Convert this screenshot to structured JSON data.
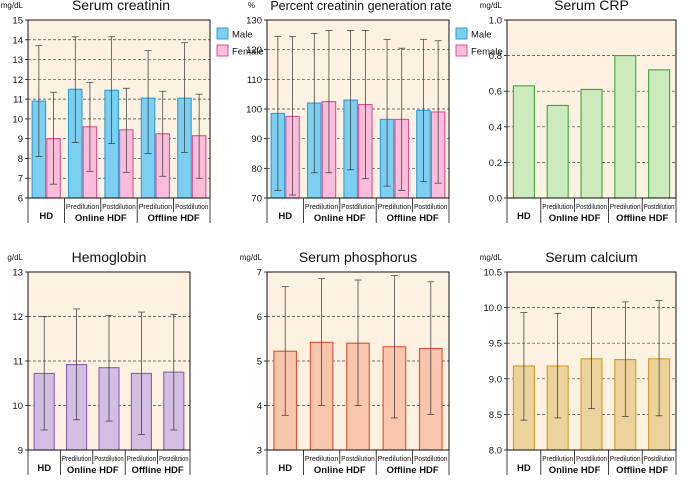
{
  "figure": {
    "group_labels": {
      "hd": "HD",
      "online": "Online HDF",
      "offline": "Offline HDF"
    },
    "sub_labels": {
      "pre": "Predilution",
      "post": "Postdilution"
    }
  },
  "chart_data": [
    {
      "id": "creatinin",
      "type": "bar",
      "title": "Serum creatinin",
      "ylabel": "mg/dL",
      "ylim": [
        6,
        15
      ],
      "yticks": [
        6,
        7,
        8,
        9,
        10,
        11,
        12,
        13,
        14,
        15
      ],
      "tick_decimals": 0,
      "grid": "dashed",
      "legend": "top-right",
      "categories": [
        "HD",
        "Online HDF Predilution",
        "Online HDF Postdilution",
        "Offline HDF Predilution",
        "Offline HDF Postdilution"
      ],
      "series": [
        {
          "name": "Male",
          "color": "#7ccff0",
          "stroke": "#2e9fd6",
          "values": [
            10.9,
            11.5,
            11.45,
            11.05,
            11.05
          ],
          "err_low": [
            8.1,
            8.8,
            8.75,
            8.25,
            8.3
          ],
          "err_high": [
            13.7,
            14.15,
            14.15,
            13.45,
            13.85
          ]
        },
        {
          "name": "Female",
          "color": "#f9bddb",
          "stroke": "#e0508f",
          "values": [
            9.0,
            9.6,
            9.45,
            9.25,
            9.15
          ],
          "err_low": [
            6.7,
            7.35,
            7.3,
            7.1,
            7.0
          ],
          "err_high": [
            11.35,
            11.85,
            11.55,
            11.4,
            11.25
          ]
        }
      ]
    },
    {
      "id": "generation",
      "type": "bar",
      "title": "Percent creatinin generation rate",
      "ylabel": "%",
      "ylim": [
        70,
        130
      ],
      "yticks": [
        70,
        80,
        90,
        100,
        110,
        120,
        130
      ],
      "tick_decimals": 0,
      "grid": "dashed",
      "legend": "top-right",
      "categories": [
        "HD",
        "Online HDF Predilution",
        "Online HDF Postdilution",
        "Offline HDF Predilution",
        "Offline HDF Postdilution"
      ],
      "series": [
        {
          "name": "Male",
          "color": "#7ccff0",
          "stroke": "#2e9fd6",
          "values": [
            98.5,
            102.0,
            103.0,
            96.5,
            99.5
          ],
          "err_low": [
            72.5,
            78.5,
            79.5,
            74.0,
            75.5
          ],
          "err_high": [
            124.5,
            125.5,
            126.5,
            123.5,
            123.5
          ]
        },
        {
          "name": "Female",
          "color": "#f9bddb",
          "stroke": "#e0508f",
          "values": [
            97.5,
            102.5,
            101.5,
            96.5,
            99.0
          ],
          "err_low": [
            71.0,
            78.5,
            76.5,
            72.5,
            75.0
          ],
          "err_high": [
            124.5,
            126.5,
            126.5,
            120.5,
            123.0
          ]
        }
      ]
    },
    {
      "id": "crp",
      "type": "bar",
      "title": "Serum CRP",
      "ylabel": "mg/dL",
      "ylim": [
        0,
        1.0
      ],
      "yticks": [
        0.0,
        0.2,
        0.4,
        0.6,
        0.8,
        1.0
      ],
      "tick_decimals": 1,
      "grid": "dashed",
      "legend": "",
      "categories": [
        "HD",
        "Online HDF Predilution",
        "Online HDF Postdilution",
        "Offline HDF Predilution",
        "Offline HDF Postdilution"
      ],
      "series": [
        {
          "name": "CRP",
          "color": "#cdeabd",
          "stroke": "#3aa83a",
          "values": [
            0.63,
            0.52,
            0.61,
            0.8,
            0.72
          ]
        }
      ]
    },
    {
      "id": "hemoglobin",
      "type": "bar",
      "title": "Hemoglobin",
      "ylabel": "g/dL",
      "ylim": [
        9,
        13
      ],
      "yticks": [
        9,
        10,
        11,
        12,
        13
      ],
      "tick_decimals": 0,
      "grid": "dashed",
      "legend": "",
      "categories": [
        "HD",
        "Online HDF Predilution",
        "Online HDF Postdilution",
        "Offline HDF Predilution",
        "Offline HDF Postdilution"
      ],
      "series": [
        {
          "name": "Hemoglobin",
          "color": "#d3bde2",
          "stroke": "#8a5fb0",
          "values": [
            10.72,
            10.92,
            10.85,
            10.72,
            10.75
          ],
          "err_low": [
            9.45,
            9.68,
            9.65,
            9.35,
            9.45
          ],
          "err_high": [
            12.0,
            12.17,
            12.02,
            12.1,
            12.05
          ]
        }
      ]
    },
    {
      "id": "phosphorus",
      "type": "bar",
      "title": "Serum phosphorus",
      "ylabel": "mg/dL",
      "ylim": [
        3,
        7
      ],
      "yticks": [
        3,
        4,
        5,
        6,
        7
      ],
      "tick_decimals": 0,
      "grid": "dashed",
      "legend": "",
      "categories": [
        "HD",
        "Online HDF Predilution",
        "Online HDF Postdilution",
        "Offline HDF Predilution",
        "Offline HDF Postdilution"
      ],
      "series": [
        {
          "name": "Phosphorus",
          "color": "#f8c5ad",
          "stroke": "#e04f33",
          "values": [
            5.22,
            5.42,
            5.4,
            5.32,
            5.28
          ],
          "err_low": [
            3.78,
            4.0,
            4.0,
            3.72,
            3.8
          ],
          "err_high": [
            6.67,
            6.85,
            6.82,
            6.92,
            6.78
          ]
        }
      ]
    },
    {
      "id": "calcium",
      "type": "bar",
      "title": "Serum calcium",
      "ylabel": "mg/dL",
      "ylim": [
        8.0,
        10.5
      ],
      "yticks": [
        8.0,
        8.5,
        9.0,
        9.5,
        10.0,
        10.5
      ],
      "tick_decimals": 1,
      "grid": "dashed",
      "legend": "",
      "categories": [
        "HD",
        "Online HDF Predilution",
        "Online HDF Postdilution",
        "Offline HDF Predilution",
        "Offline HDF Postdilution"
      ],
      "series": [
        {
          "name": "Calcium",
          "color": "#ecd39b",
          "stroke": "#d19a28",
          "values": [
            9.18,
            9.18,
            9.28,
            9.27,
            9.28
          ],
          "err_low": [
            8.42,
            8.45,
            8.58,
            8.47,
            8.48
          ],
          "err_high": [
            9.93,
            9.92,
            10.0,
            10.08,
            10.1
          ]
        }
      ]
    }
  ]
}
